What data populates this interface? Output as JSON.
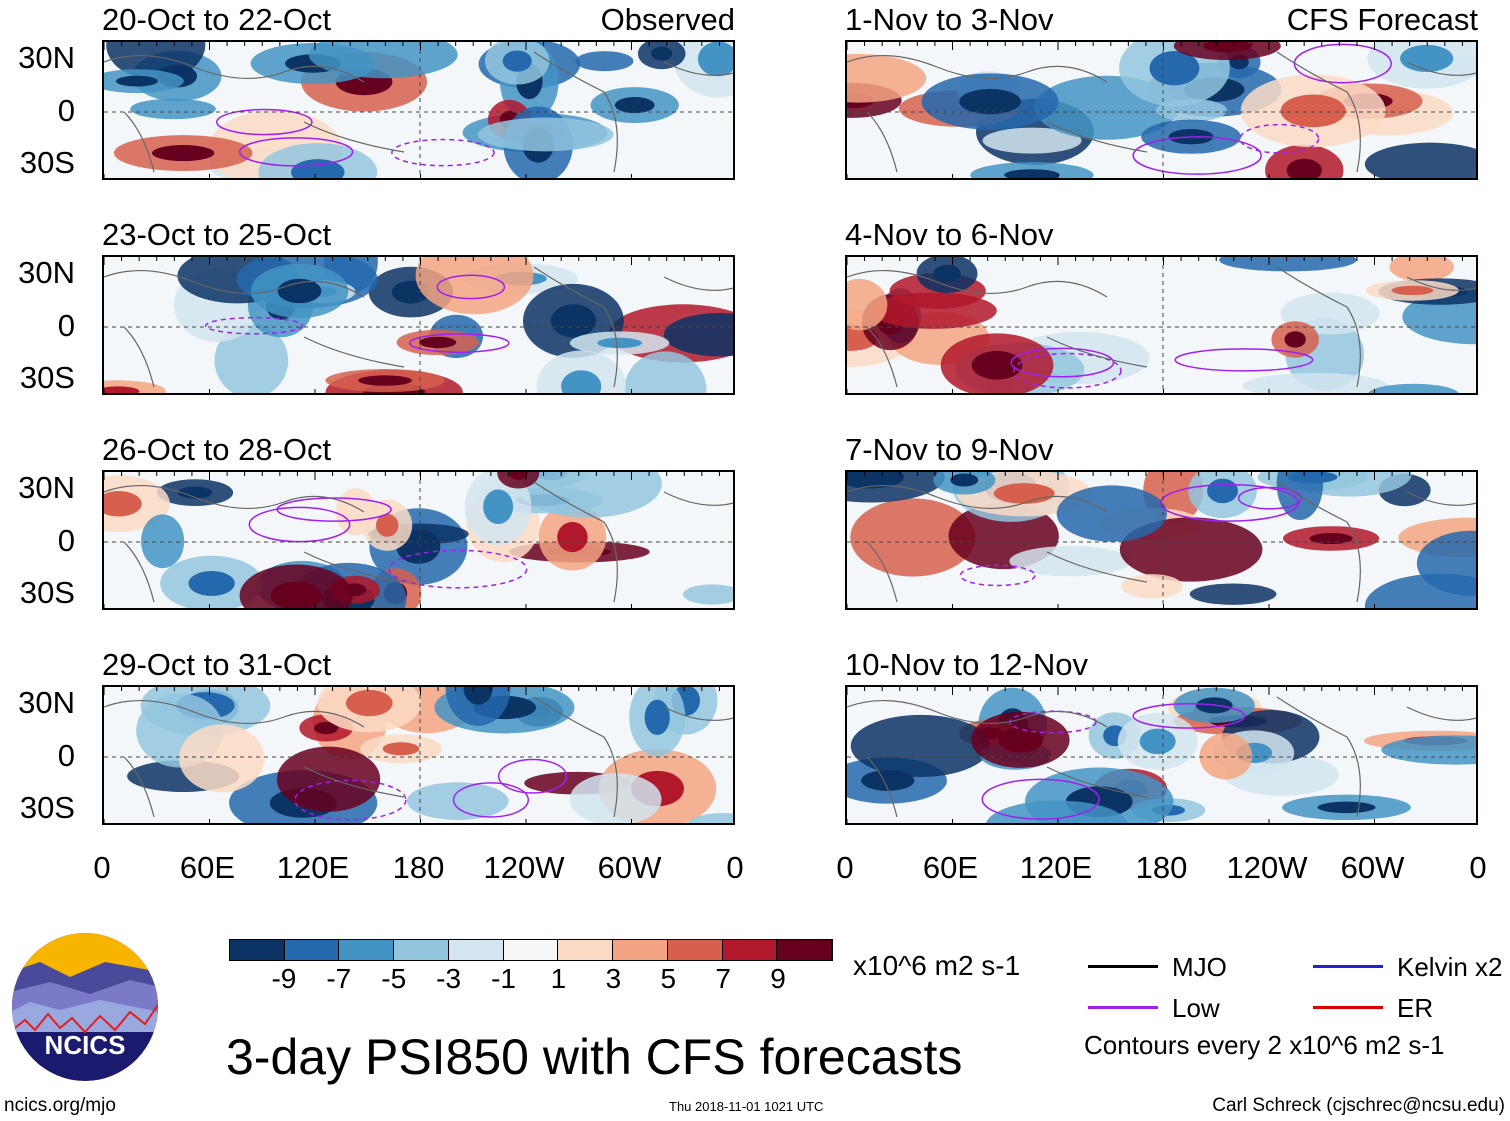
{
  "panels_left": [
    {
      "title": "20-Oct to 22-Oct",
      "right_label": "Observed"
    },
    {
      "title": "23-Oct to 25-Oct"
    },
    {
      "title": "26-Oct to 28-Oct"
    },
    {
      "title": "29-Oct to 31-Oct"
    }
  ],
  "panels_right": [
    {
      "title": "1-Nov to 3-Nov",
      "right_label": "CFS Forecast"
    },
    {
      "title": "4-Nov to 6-Nov"
    },
    {
      "title": "7-Nov to 9-Nov"
    },
    {
      "title": "10-Nov to 12-Nov"
    }
  ],
  "lat_labels": [
    "30N",
    "0",
    "30S"
  ],
  "lon_labels": [
    "0",
    "60E",
    "120E",
    "180",
    "120W",
    "60W",
    "0"
  ],
  "colorbar": {
    "colors": [
      "#0b3364",
      "#2468ad",
      "#4394c4",
      "#93c5de",
      "#d2e5f0",
      "#f7f7f7",
      "#fcdac6",
      "#f3a482",
      "#d6604d",
      "#b1182b",
      "#67001f"
    ],
    "labels": [
      "-9",
      "-7",
      "-5",
      "-3",
      "-1",
      "1",
      "3",
      "5",
      "7",
      "9"
    ],
    "units": "x10^6 m2 s-1"
  },
  "legend": {
    "items": [
      {
        "label": "MJO",
        "color": "#000000"
      },
      {
        "label": "Kelvin x2",
        "color": "#2222cc"
      },
      {
        "label": "Low",
        "color": "#a020f0"
      },
      {
        "label": "ER",
        "color": "#dd0000"
      }
    ],
    "contours_note": "Contours every 2 x10^6 m2 s-1"
  },
  "title": "3-day PSI850 with CFS forecasts",
  "logo_text": "NCICS",
  "footer": {
    "url": "ncics.org/mjo",
    "timestamp": "Thu 2018-11-01 1021 UTC",
    "author": "Carl Schreck (cjschrec@ncsu.edu)"
  }
}
